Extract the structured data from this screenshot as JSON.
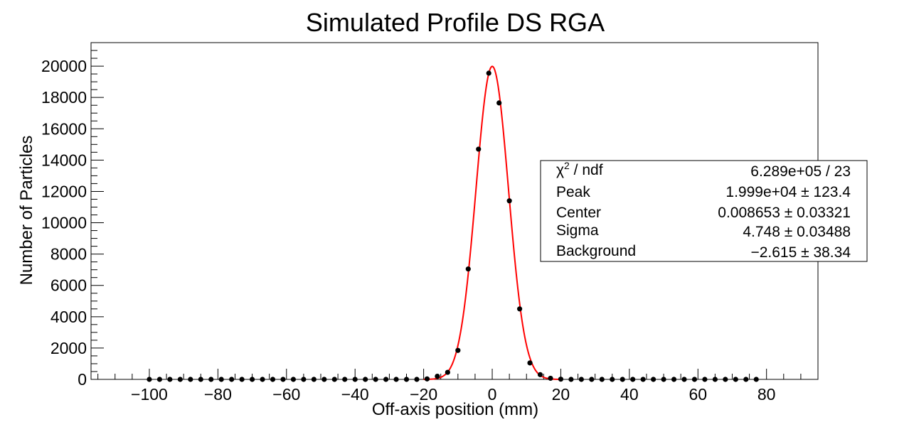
{
  "chart_data": {
    "type": "scatter",
    "title": "Simulated Profile DS RGA",
    "xlabel": "Off-axis position (mm)",
    "ylabel": "Number of Particles",
    "xlim": [
      -117,
      95
    ],
    "ylim": [
      0,
      21500
    ],
    "x_ticks": [
      -100,
      -80,
      -60,
      -40,
      -20,
      0,
      20,
      40,
      60,
      80
    ],
    "x_tick_labels": [
      "−100",
      "−80",
      "−60",
      "−40",
      "−20",
      "0",
      "20",
      "40",
      "60",
      "80"
    ],
    "y_ticks": [
      0,
      2000,
      4000,
      6000,
      8000,
      10000,
      12000,
      14000,
      16000,
      18000,
      20000
    ],
    "y_tick_labels": [
      "0",
      "2000",
      "4000",
      "6000",
      "8000",
      "10000",
      "12000",
      "14000",
      "16000",
      "18000",
      "20000"
    ],
    "series": [
      {
        "x": [
          -100,
          -97,
          -94,
          -91,
          -88,
          -85,
          -82,
          -79,
          -76,
          -73,
          -70,
          -67,
          -64,
          -61,
          -58,
          -55,
          -52,
          -49,
          -46,
          -43,
          -40,
          -37,
          -34,
          -31,
          -28,
          -25,
          -22,
          -19,
          -16,
          -13,
          -10,
          -7,
          -4,
          -1,
          2,
          5,
          8,
          11,
          14,
          17,
          20,
          23,
          26,
          29,
          32,
          35,
          38,
          41,
          44,
          47,
          50,
          53,
          56,
          59,
          62,
          65,
          68,
          71,
          74,
          77
        ],
        "y": [
          0,
          0,
          0,
          0,
          0,
          0,
          0,
          0,
          0,
          0,
          0,
          0,
          0,
          0,
          0,
          0,
          0,
          0,
          0,
          0,
          0,
          0,
          0,
          0,
          0,
          0,
          0,
          30,
          200,
          450,
          1850,
          7050,
          14700,
          19550,
          17650,
          11400,
          4500,
          1050,
          300,
          70,
          15,
          0,
          0,
          0,
          0,
          0,
          0,
          0,
          0,
          0,
          0,
          0,
          0,
          0,
          0,
          0,
          0,
          0,
          0,
          0
        ]
      }
    ],
    "fit": {
      "peak": 19990,
      "center": 0.008653,
      "sigma": 4.748,
      "background": -2.615,
      "color": "#ff0000"
    },
    "marker_color": "#000000",
    "stats": [
      {
        "label_base": "χ",
        "label_sup": "2",
        "label_rest": " / ndf",
        "value": "6.289e+05 / 23"
      },
      {
        "label": "Peak",
        "value": "1.999e+04 ± 123.4"
      },
      {
        "label": "Center",
        "value": "0.008653 ± 0.03321"
      },
      {
        "label": "Sigma",
        "value": "4.748 ± 0.03488"
      },
      {
        "label": "Background",
        "value": "−2.615 ± 38.34"
      }
    ]
  }
}
